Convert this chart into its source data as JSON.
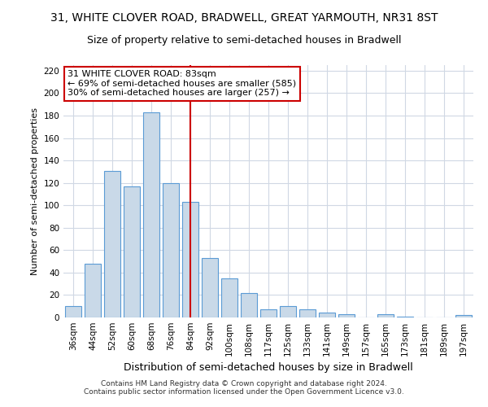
{
  "title": "31, WHITE CLOVER ROAD, BRADWELL, GREAT YARMOUTH, NR31 8ST",
  "subtitle": "Size of property relative to semi-detached houses in Bradwell",
  "xlabel": "Distribution of semi-detached houses by size in Bradwell",
  "ylabel": "Number of semi-detached properties",
  "categories": [
    "36sqm",
    "44sqm",
    "52sqm",
    "60sqm",
    "68sqm",
    "76sqm",
    "84sqm",
    "92sqm",
    "100sqm",
    "108sqm",
    "117sqm",
    "125sqm",
    "133sqm",
    "141sqm",
    "149sqm",
    "157sqm",
    "165sqm",
    "173sqm",
    "181sqm",
    "189sqm",
    "197sqm"
  ],
  "values": [
    10,
    48,
    131,
    117,
    183,
    120,
    103,
    53,
    35,
    22,
    7,
    10,
    7,
    4,
    3,
    0,
    3,
    1,
    0,
    0,
    2
  ],
  "bar_color": "#c9d9e8",
  "bar_edge_color": "#5b9bd5",
  "vline_color": "#cc0000",
  "annotation_text": "31 WHITE CLOVER ROAD: 83sqm\n← 69% of semi-detached houses are smaller (585)\n30% of semi-detached houses are larger (257) →",
  "annotation_box_color": "#ffffff",
  "annotation_box_edge": "#cc0000",
  "ylim": [
    0,
    225
  ],
  "yticks": [
    0,
    20,
    40,
    60,
    80,
    100,
    120,
    140,
    160,
    180,
    200,
    220
  ],
  "footer1": "Contains HM Land Registry data © Crown copyright and database right 2024.",
  "footer2": "Contains public sector information licensed under the Open Government Licence v3.0.",
  "bg_color": "#ffffff",
  "grid_color": "#d0d8e4",
  "title_fontsize": 10,
  "subtitle_fontsize": 9,
  "annot_fontsize": 8,
  "ylabel_fontsize": 8,
  "xlabel_fontsize": 9,
  "footer_fontsize": 6.5,
  "tick_fontsize": 7.5
}
